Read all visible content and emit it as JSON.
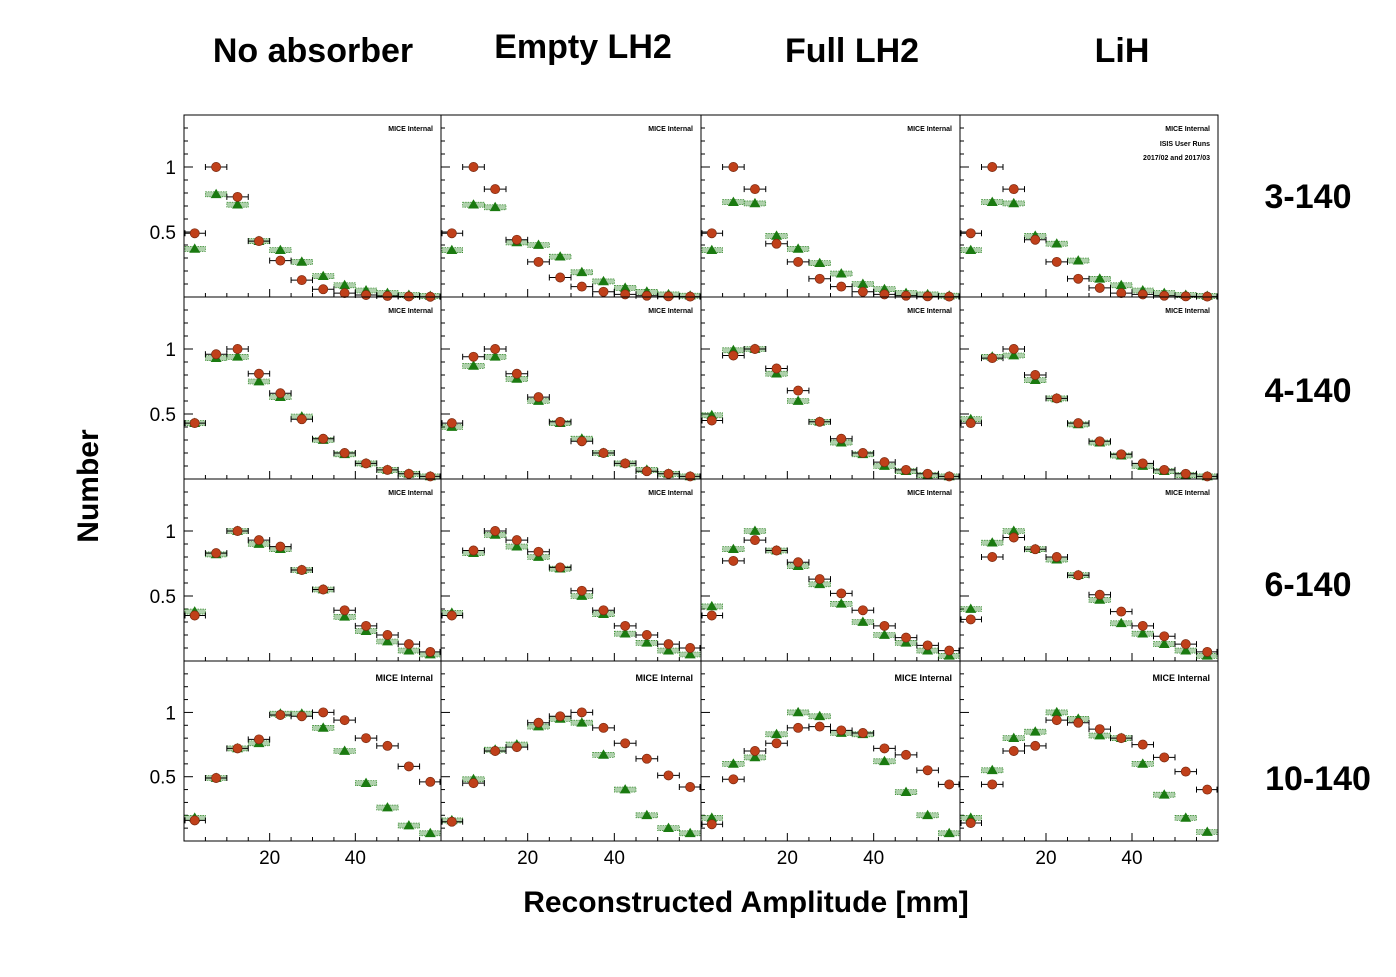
{
  "figure": {
    "column_titles": [
      "No absorber",
      "Empty LH2",
      "Full LH2",
      "LiH"
    ],
    "row_labels": [
      "3-140",
      "4-140",
      "6-140",
      "10-140"
    ],
    "xlabel": "Reconstructed Amplitude [mm]",
    "ylabel": "Number",
    "x_ticks": [
      "20",
      "40"
    ],
    "y_ticks": [
      "0.5",
      "1"
    ],
    "annotation": "MICE Internal",
    "extra_annotation": [
      "ISIS User Runs",
      "2017/02 and 2017/03"
    ],
    "colors": {
      "upstream": "#c0401a",
      "downstream": "#1a7a10",
      "frame": "#000000"
    }
  },
  "chart_data": {
    "type": "scatter",
    "xlim": [
      0,
      60
    ],
    "ylim": [
      0,
      1.4
    ],
    "grid": false,
    "x_bins": [
      2.5,
      7.5,
      12.5,
      17.5,
      22.5,
      27.5,
      32.5,
      37.5,
      42.5,
      47.5,
      52.5,
      57.5
    ],
    "x_bin_half_width": 2.5,
    "marker_types": {
      "upstream": "circle",
      "downstream": "triangle"
    },
    "panels": [
      [
        {
          "upstream": [
            0.49,
            1.0,
            0.77,
            0.43,
            0.28,
            0.13,
            0.06,
            0.03,
            0.015,
            0.008,
            0.004,
            0.002
          ],
          "downstream": [
            0.37,
            0.79,
            0.71,
            0.43,
            0.36,
            0.27,
            0.16,
            0.09,
            0.05,
            0.03,
            0.015,
            0.008
          ]
        },
        {
          "upstream": [
            0.49,
            1.0,
            0.83,
            0.44,
            0.27,
            0.15,
            0.08,
            0.04,
            0.02,
            0.01,
            0.005,
            0.003
          ],
          "downstream": [
            0.36,
            0.71,
            0.69,
            0.42,
            0.4,
            0.31,
            0.19,
            0.12,
            0.07,
            0.04,
            0.02,
            0.01
          ]
        },
        {
          "upstream": [
            0.49,
            1.0,
            0.83,
            0.41,
            0.27,
            0.14,
            0.08,
            0.04,
            0.02,
            0.01,
            0.005,
            0.003
          ],
          "downstream": [
            0.36,
            0.73,
            0.72,
            0.47,
            0.37,
            0.26,
            0.18,
            0.1,
            0.06,
            0.03,
            0.02,
            0.01
          ]
        },
        {
          "upstream": [
            0.49,
            1.0,
            0.83,
            0.44,
            0.27,
            0.14,
            0.07,
            0.03,
            0.02,
            0.01,
            0.005,
            0.003
          ],
          "downstream": [
            0.36,
            0.73,
            0.72,
            0.47,
            0.41,
            0.28,
            0.14,
            0.09,
            0.05,
            0.03,
            0.015,
            0.008
          ]
        }
      ],
      [
        {
          "upstream": [
            0.43,
            0.96,
            1.0,
            0.81,
            0.66,
            0.46,
            0.31,
            0.2,
            0.12,
            0.07,
            0.04,
            0.02
          ],
          "downstream": [
            0.43,
            0.93,
            0.94,
            0.75,
            0.63,
            0.48,
            0.3,
            0.19,
            0.12,
            0.07,
            0.04,
            0.02
          ]
        },
        {
          "upstream": [
            0.43,
            0.94,
            1.0,
            0.81,
            0.63,
            0.44,
            0.29,
            0.2,
            0.12,
            0.06,
            0.04,
            0.02
          ],
          "downstream": [
            0.4,
            0.87,
            0.94,
            0.77,
            0.6,
            0.43,
            0.31,
            0.2,
            0.12,
            0.07,
            0.04,
            0.02
          ]
        },
        {
          "upstream": [
            0.45,
            0.95,
            1.0,
            0.85,
            0.68,
            0.44,
            0.31,
            0.2,
            0.13,
            0.07,
            0.04,
            0.02
          ],
          "downstream": [
            0.49,
            0.99,
            1.0,
            0.81,
            0.6,
            0.44,
            0.28,
            0.19,
            0.1,
            0.06,
            0.03,
            0.02
          ]
        },
        {
          "upstream": [
            0.43,
            0.93,
            1.0,
            0.8,
            0.62,
            0.43,
            0.29,
            0.19,
            0.12,
            0.07,
            0.04,
            0.02
          ],
          "downstream": [
            0.46,
            0.94,
            0.95,
            0.76,
            0.62,
            0.42,
            0.28,
            0.18,
            0.1,
            0.06,
            0.03,
            0.02
          ]
        }
      ],
      [
        {
          "upstream": [
            0.35,
            0.83,
            1.0,
            0.93,
            0.88,
            0.7,
            0.55,
            0.39,
            0.27,
            0.2,
            0.13,
            0.07
          ],
          "downstream": [
            0.38,
            0.82,
            1.0,
            0.9,
            0.86,
            0.7,
            0.55,
            0.34,
            0.23,
            0.15,
            0.08,
            0.05
          ]
        },
        {
          "upstream": [
            0.35,
            0.85,
            1.0,
            0.93,
            0.84,
            0.72,
            0.54,
            0.39,
            0.27,
            0.2,
            0.13,
            0.1
          ],
          "downstream": [
            0.37,
            0.83,
            0.97,
            0.88,
            0.8,
            0.71,
            0.5,
            0.36,
            0.21,
            0.14,
            0.08,
            0.05
          ]
        },
        {
          "upstream": [
            0.35,
            0.77,
            0.93,
            0.85,
            0.76,
            0.63,
            0.52,
            0.39,
            0.27,
            0.18,
            0.12,
            0.08
          ],
          "downstream": [
            0.42,
            0.86,
            1.0,
            0.85,
            0.73,
            0.59,
            0.44,
            0.3,
            0.2,
            0.14,
            0.08,
            0.04
          ]
        },
        {
          "upstream": [
            0.32,
            0.8,
            0.95,
            0.86,
            0.8,
            0.66,
            0.51,
            0.38,
            0.27,
            0.19,
            0.13,
            0.07
          ],
          "downstream": [
            0.4,
            0.91,
            1.0,
            0.86,
            0.78,
            0.66,
            0.47,
            0.29,
            0.21,
            0.13,
            0.08,
            0.04
          ]
        }
      ],
      [
        {
          "upstream": [
            0.16,
            0.49,
            0.72,
            0.79,
            0.98,
            0.97,
            1.0,
            0.94,
            0.8,
            0.74,
            0.58,
            0.46
          ],
          "downstream": [
            0.18,
            0.49,
            0.72,
            0.76,
            0.99,
            0.99,
            0.88,
            0.7,
            0.45,
            0.26,
            0.12,
            0.06
          ]
        },
        {
          "upstream": [
            0.15,
            0.45,
            0.7,
            0.73,
            0.92,
            0.97,
            1.0,
            0.88,
            0.76,
            0.64,
            0.51,
            0.42
          ],
          "downstream": [
            0.16,
            0.48,
            0.71,
            0.75,
            0.89,
            0.95,
            0.92,
            0.67,
            0.4,
            0.2,
            0.1,
            0.06
          ]
        },
        {
          "upstream": [
            0.13,
            0.48,
            0.7,
            0.76,
            0.88,
            0.89,
            0.86,
            0.84,
            0.72,
            0.67,
            0.55,
            0.44
          ],
          "downstream": [
            0.18,
            0.6,
            0.65,
            0.83,
            1.0,
            0.97,
            0.84,
            0.83,
            0.62,
            0.38,
            0.2,
            0.06
          ]
        },
        {
          "upstream": [
            0.14,
            0.44,
            0.7,
            0.74,
            0.94,
            0.92,
            0.87,
            0.8,
            0.75,
            0.65,
            0.54,
            0.4
          ],
          "downstream": [
            0.18,
            0.55,
            0.8,
            0.85,
            1.0,
            0.95,
            0.82,
            0.8,
            0.6,
            0.36,
            0.18,
            0.07
          ]
        }
      ]
    ]
  }
}
